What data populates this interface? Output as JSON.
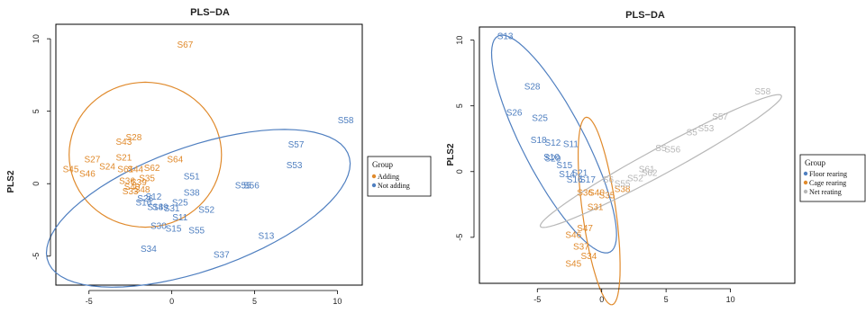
{
  "chart_data": [
    {
      "type": "scatter",
      "title": "PLS−DA",
      "xlabel": "",
      "ylabel": "PLS2",
      "xlim": [
        -7,
        11.5
      ],
      "ylim": [
        -7,
        11
      ],
      "xticks": [
        "-5",
        "0",
        "5",
        "10"
      ],
      "yticks": [
        "-5",
        "0",
        "5",
        "10"
      ],
      "xtick_values": [
        -5,
        0,
        5,
        10
      ],
      "ytick_values": [
        -5,
        0,
        5,
        10
      ],
      "legend": {
        "title": "Group",
        "placement": "right",
        "entries": [
          "Adding",
          "Not adding"
        ]
      },
      "series": [
        {
          "name": "Adding",
          "color": "#e08a2c",
          "points": [
            {
              "label": "S67",
              "x": 0.8,
              "y": 9.6
            },
            {
              "label": "S28",
              "x": -2.3,
              "y": 3.2
            },
            {
              "label": "S43",
              "x": -2.9,
              "y": 2.9
            },
            {
              "label": "S64",
              "x": 0.2,
              "y": 1.7
            },
            {
              "label": "S21",
              "x": -2.9,
              "y": 1.8
            },
            {
              "label": "S27",
              "x": -4.8,
              "y": 1.7
            },
            {
              "label": "S24",
              "x": -3.9,
              "y": 1.2
            },
            {
              "label": "S62",
              "x": -1.2,
              "y": 1.1
            },
            {
              "label": "S45",
              "x": -6.1,
              "y": 1.0
            },
            {
              "label": "S46",
              "x": -5.1,
              "y": 0.7
            },
            {
              "label": "S44",
              "x": -2.2,
              "y": 1.0
            },
            {
              "label": "S35",
              "x": -1.5,
              "y": 0.4
            },
            {
              "label": "S61",
              "x": -2.8,
              "y": 1.0
            },
            {
              "label": "S36",
              "x": -2.7,
              "y": 0.2
            },
            {
              "label": "S39",
              "x": -2.0,
              "y": 0.1
            },
            {
              "label": "S40",
              "x": -2.4,
              "y": -0.2
            },
            {
              "label": "S33",
              "x": -2.5,
              "y": -0.5
            },
            {
              "label": "S48",
              "x": -1.8,
              "y": -0.4
            }
          ]
        },
        {
          "name": "Not adding",
          "color": "#4f7fc0",
          "points": [
            {
              "label": "S58",
              "x": 10.5,
              "y": 4.4
            },
            {
              "label": "S57",
              "x": 7.5,
              "y": 2.7
            },
            {
              "label": "S53",
              "x": 7.4,
              "y": 1.3
            },
            {
              "label": "S51",
              "x": 1.2,
              "y": 0.5
            },
            {
              "label": "S56",
              "x": 4.8,
              "y": -0.1
            },
            {
              "label": "S55",
              "x": 4.3,
              "y": -0.1
            },
            {
              "label": "S38",
              "x": 1.2,
              "y": -0.6
            },
            {
              "label": "S12",
              "x": -1.1,
              "y": -0.9
            },
            {
              "label": "S26",
              "x": -1.6,
              "y": -1.0
            },
            {
              "label": "S25",
              "x": 0.5,
              "y": -1.3
            },
            {
              "label": "S18",
              "x": -1.0,
              "y": -1.6
            },
            {
              "label": "S16",
              "x": -1.7,
              "y": -1.3
            },
            {
              "label": "S31",
              "x": 0.0,
              "y": -1.7
            },
            {
              "label": "S49",
              "x": -0.7,
              "y": -1.6
            },
            {
              "label": "S52",
              "x": 2.1,
              "y": -1.8
            },
            {
              "label": "S11",
              "x": 0.5,
              "y": -2.3
            },
            {
              "label": "S30",
              "x": -0.8,
              "y": -2.9
            },
            {
              "label": "S15",
              "x": 0.1,
              "y": -3.1
            },
            {
              "label": "S55",
              "x": 1.5,
              "y": -3.2
            },
            {
              "label": "S13",
              "x": 5.7,
              "y": -3.6
            },
            {
              "label": "S34",
              "x": -1.4,
              "y": -4.5
            },
            {
              "label": "S37",
              "x": 3.0,
              "y": -4.9
            }
          ]
        }
      ],
      "ellipses": [
        {
          "series": "Adding",
          "center": [
            -1.6,
            2.0
          ],
          "radii": [
            4.6,
            5.0
          ],
          "rotation_deg": 0
        },
        {
          "series": "Not adding",
          "center": [
            1.6,
            -1.7
          ],
          "radii": [
            9.8,
            4.2
          ],
          "rotation_deg": 23
        }
      ]
    },
    {
      "type": "scatter",
      "title": "PLS−DA",
      "xlabel": "",
      "ylabel": "PLS2",
      "xlim": [
        -9.5,
        15
      ],
      "ylim": [
        -8.5,
        11
      ],
      "xticks": [
        "-5",
        "0",
        "5",
        "10"
      ],
      "yticks": [
        "-5",
        "0",
        "5",
        "10"
      ],
      "xtick_values": [
        -5,
        0,
        5,
        10
      ],
      "ytick_values": [
        -5,
        0,
        5,
        10
      ],
      "legend": {
        "title": "Group",
        "placement": "right",
        "entries": [
          "Floor rearing",
          "Cage rearing",
          "Net reating"
        ]
      },
      "series": [
        {
          "name": "Floor rearing",
          "color": "#4f7fc0",
          "points": [
            {
              "label": "S13",
              "x": -7.5,
              "y": 10.3
            },
            {
              "label": "S28",
              "x": -5.4,
              "y": 6.5
            },
            {
              "label": "S26",
              "x": -6.8,
              "y": 4.5
            },
            {
              "label": "S25",
              "x": -4.8,
              "y": 4.1
            },
            {
              "label": "S18",
              "x": -4.9,
              "y": 2.4
            },
            {
              "label": "S12",
              "x": -3.8,
              "y": 2.2
            },
            {
              "label": "S11",
              "x": -2.4,
              "y": 2.1
            },
            {
              "label": "S10",
              "x": -3.9,
              "y": 1.1
            },
            {
              "label": "S29",
              "x": -3.8,
              "y": 1.0
            },
            {
              "label": "S15",
              "x": -2.9,
              "y": 0.5
            },
            {
              "label": "S21",
              "x": -1.7,
              "y": -0.1
            },
            {
              "label": "S14",
              "x": -2.7,
              "y": -0.2
            },
            {
              "label": "S16",
              "x": -2.1,
              "y": -0.6
            },
            {
              "label": "S17",
              "x": -1.1,
              "y": -0.6
            }
          ]
        },
        {
          "name": "Cage rearing",
          "color": "#e08a2c",
          "points": [
            {
              "label": "S38",
              "x": 1.6,
              "y": -1.3
            },
            {
              "label": "S35",
              "x": 0.4,
              "y": -1.8
            },
            {
              "label": "S31",
              "x": -0.5,
              "y": -2.7
            },
            {
              "label": "S47",
              "x": -1.3,
              "y": -4.3
            },
            {
              "label": "S46",
              "x": -2.2,
              "y": -4.8
            },
            {
              "label": "S37",
              "x": -1.6,
              "y": -5.7
            },
            {
              "label": "S34",
              "x": -1.0,
              "y": -6.4
            },
            {
              "label": "S45",
              "x": -2.2,
              "y": -7.0
            },
            {
              "label": "S40",
              "x": -0.4,
              "y": -1.6
            },
            {
              "label": "S36",
              "x": -1.3,
              "y": -1.6
            }
          ]
        },
        {
          "name": "Net reating",
          "color": "#b8b8b8",
          "points": [
            {
              "label": "S58",
              "x": 12.5,
              "y": 6.1
            },
            {
              "label": "S57",
              "x": 9.2,
              "y": 4.2
            },
            {
              "label": "S53",
              "x": 8.1,
              "y": 3.3
            },
            {
              "label": "S5",
              "x": 7.0,
              "y": 3.0
            },
            {
              "label": "S56",
              "x": 5.5,
              "y": 1.7
            },
            {
              "label": "S5",
              "x": 4.6,
              "y": 1.8
            },
            {
              "label": "S61",
              "x": 3.5,
              "y": 0.2
            },
            {
              "label": "S62",
              "x": 3.7,
              "y": -0.1
            },
            {
              "label": "S52",
              "x": 2.6,
              "y": -0.5
            },
            {
              "label": "S6",
              "x": 0.5,
              "y": -0.6
            },
            {
              "label": "S55",
              "x": 1.6,
              "y": -0.9
            }
          ]
        }
      ],
      "ellipses": [
        {
          "series": "Floor rearing",
          "center": [
            -3.7,
            2.1
          ],
          "radii": [
            9.3,
            2.4
          ],
          "rotation_deg": -62
        },
        {
          "series": "Cage rearing",
          "center": [
            -0.2,
            -3.0
          ],
          "radii": [
            7.2,
            1.3
          ],
          "rotation_deg": -82
        },
        {
          "series": "Net reating",
          "center": [
            4.6,
            0.8
          ],
          "radii": [
            10.6,
            1.0
          ],
          "rotation_deg": 28
        }
      ]
    }
  ]
}
